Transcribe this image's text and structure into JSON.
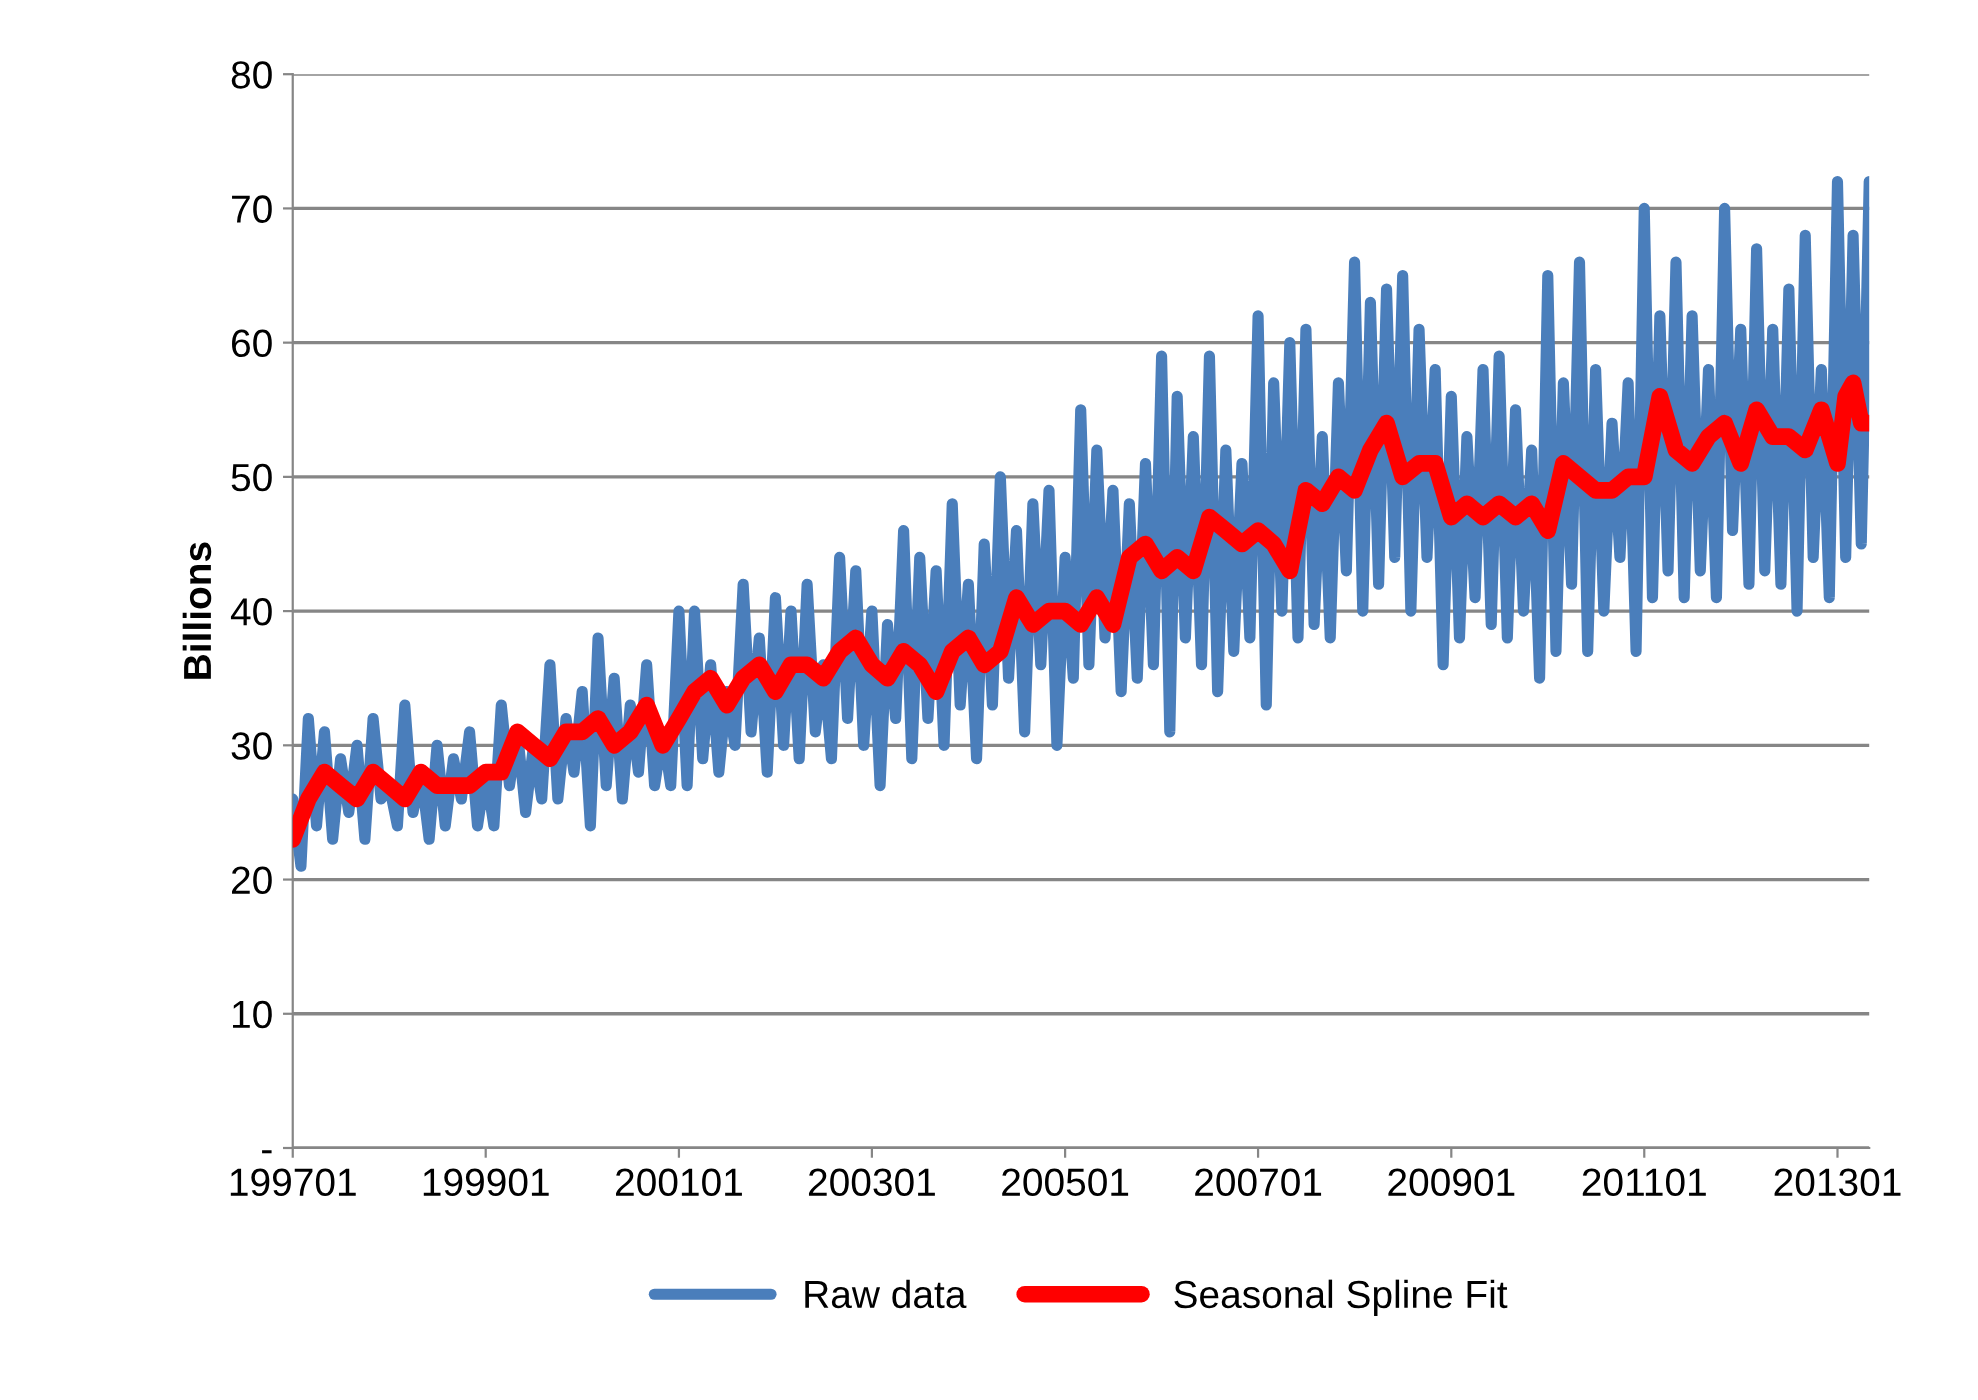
{
  "chart_data": {
    "type": "line",
    "ylabel": "Billions",
    "x": [
      "1997-01",
      "1997-02",
      "1997-03",
      "1997-04",
      "1997-05",
      "1997-06",
      "1997-07",
      "1997-08",
      "1997-09",
      "1997-10",
      "1997-11",
      "1997-12",
      "1998-01",
      "1998-02",
      "1998-03",
      "1998-04",
      "1998-05",
      "1998-06",
      "1998-07",
      "1998-08",
      "1998-09",
      "1998-10",
      "1998-11",
      "1998-12",
      "1999-01",
      "1999-02",
      "1999-03",
      "1999-04",
      "1999-05",
      "1999-06",
      "1999-07",
      "1999-08",
      "1999-09",
      "1999-10",
      "1999-11",
      "1999-12",
      "2000-01",
      "2000-02",
      "2000-03",
      "2000-04",
      "2000-05",
      "2000-06",
      "2000-07",
      "2000-08",
      "2000-09",
      "2000-10",
      "2000-11",
      "2000-12",
      "2001-01",
      "2001-02",
      "2001-03",
      "2001-04",
      "2001-05",
      "2001-06",
      "2001-07",
      "2001-08",
      "2001-09",
      "2001-10",
      "2001-11",
      "2001-12",
      "2002-01",
      "2002-02",
      "2002-03",
      "2002-04",
      "2002-05",
      "2002-06",
      "2002-07",
      "2002-08",
      "2002-09",
      "2002-10",
      "2002-11",
      "2002-12",
      "2003-01",
      "2003-02",
      "2003-03",
      "2003-04",
      "2003-05",
      "2003-06",
      "2003-07",
      "2003-08",
      "2003-09",
      "2003-10",
      "2003-11",
      "2003-12",
      "2004-01",
      "2004-02",
      "2004-03",
      "2004-04",
      "2004-05",
      "2004-06",
      "2004-07",
      "2004-08",
      "2004-09",
      "2004-10",
      "2004-11",
      "2004-12",
      "2005-01",
      "2005-02",
      "2005-03",
      "2005-04",
      "2005-05",
      "2005-06",
      "2005-07",
      "2005-08",
      "2005-09",
      "2005-10",
      "2005-11",
      "2005-12",
      "2006-01",
      "2006-02",
      "2006-03",
      "2006-04",
      "2006-05",
      "2006-06",
      "2006-07",
      "2006-08",
      "2006-09",
      "2006-10",
      "2006-11",
      "2006-12",
      "2007-01",
      "2007-02",
      "2007-03",
      "2007-04",
      "2007-05",
      "2007-06",
      "2007-07",
      "2007-08",
      "2007-09",
      "2007-10",
      "2007-11",
      "2007-12",
      "2008-01",
      "2008-02",
      "2008-03",
      "2008-04",
      "2008-05",
      "2008-06",
      "2008-07",
      "2008-08",
      "2008-09",
      "2008-10",
      "2008-11",
      "2008-12",
      "2009-01",
      "2009-02",
      "2009-03",
      "2009-04",
      "2009-05",
      "2009-06",
      "2009-07",
      "2009-08",
      "2009-09",
      "2009-10",
      "2009-11",
      "2009-12",
      "2010-01",
      "2010-02",
      "2010-03",
      "2010-04",
      "2010-05",
      "2010-06",
      "2010-07",
      "2010-08",
      "2010-09",
      "2010-10",
      "2010-11",
      "2010-12",
      "2011-01",
      "2011-02",
      "2011-03",
      "2011-04",
      "2011-05",
      "2011-06",
      "2011-07",
      "2011-08",
      "2011-09",
      "2011-10",
      "2011-11",
      "2011-12",
      "2012-01",
      "2012-02",
      "2012-03",
      "2012-04",
      "2012-05",
      "2012-06",
      "2012-07",
      "2012-08",
      "2012-09",
      "2012-10",
      "2012-11",
      "2012-12",
      "2013-01",
      "2013-02",
      "2013-03",
      "2013-04",
      "2013-05"
    ],
    "series": [
      {
        "name": "Raw data",
        "color": "#4a7ebb",
        "values": [
          26,
          21,
          32,
          24,
          31,
          23,
          29,
          25,
          30,
          23,
          32,
          26,
          27,
          24,
          33,
          25,
          28,
          23,
          30,
          24,
          29,
          26,
          31,
          24,
          28,
          24,
          33,
          27,
          31,
          25,
          30,
          26,
          36,
          26,
          32,
          28,
          34,
          24,
          38,
          27,
          35,
          26,
          33,
          28,
          36,
          27,
          31,
          27,
          40,
          27,
          40,
          29,
          36,
          28,
          34,
          30,
          42,
          31,
          38,
          28,
          41,
          30,
          40,
          29,
          42,
          31,
          36,
          29,
          44,
          32,
          43,
          30,
          40,
          27,
          39,
          32,
          46,
          29,
          44,
          32,
          43,
          30,
          48,
          33,
          42,
          29,
          45,
          33,
          50,
          35,
          46,
          31,
          48,
          36,
          49,
          30,
          44,
          35,
          55,
          36,
          52,
          38,
          49,
          34,
          48,
          35,
          51,
          36,
          59,
          31,
          56,
          38,
          53,
          36,
          59,
          34,
          52,
          37,
          51,
          38,
          62,
          33,
          57,
          40,
          60,
          38,
          61,
          39,
          53,
          38,
          57,
          43,
          66,
          40,
          63,
          42,
          64,
          44,
          65,
          40,
          61,
          44,
          58,
          36,
          56,
          38,
          53,
          41,
          58,
          39,
          59,
          38,
          55,
          40,
          52,
          35,
          65,
          37,
          57,
          42,
          66,
          37,
          58,
          40,
          54,
          44,
          57,
          37,
          70,
          41,
          62,
          43,
          66,
          41,
          62,
          43,
          58,
          41,
          70,
          46,
          61,
          42,
          67,
          43,
          61,
          42,
          64,
          40,
          68,
          44,
          58,
          41,
          72,
          44,
          68,
          45,
          72
        ]
      },
      {
        "name": "Seasonal Spline Fit",
        "color": "#ff0000",
        "x": [
          "1997-01",
          "1997-03",
          "1997-05",
          "1997-07",
          "1997-09",
          "1997-11",
          "1998-01",
          "1998-03",
          "1998-05",
          "1998-07",
          "1998-09",
          "1998-11",
          "1999-01",
          "1999-03",
          "1999-05",
          "1999-07",
          "1999-09",
          "1999-11",
          "2000-01",
          "2000-03",
          "2000-05",
          "2000-07",
          "2000-09",
          "2000-11",
          "2001-01",
          "2001-03",
          "2001-05",
          "2001-07",
          "2001-09",
          "2001-11",
          "2002-01",
          "2002-03",
          "2002-05",
          "2002-07",
          "2002-09",
          "2002-11",
          "2003-01",
          "2003-03",
          "2003-05",
          "2003-07",
          "2003-09",
          "2003-11",
          "2004-01",
          "2004-03",
          "2004-05",
          "2004-07",
          "2004-09",
          "2004-11",
          "2005-01",
          "2005-03",
          "2005-05",
          "2005-07",
          "2005-09",
          "2005-11",
          "2006-01",
          "2006-03",
          "2006-05",
          "2006-07",
          "2006-09",
          "2006-11",
          "2007-01",
          "2007-03",
          "2007-05",
          "2007-07",
          "2007-09",
          "2007-11",
          "2008-01",
          "2008-03",
          "2008-05",
          "2008-07",
          "2008-09",
          "2008-11",
          "2009-01",
          "2009-03",
          "2009-05",
          "2009-07",
          "2009-09",
          "2009-11",
          "2010-01",
          "2010-03",
          "2010-05",
          "2010-07",
          "2010-09",
          "2010-11",
          "2011-01",
          "2011-03",
          "2011-05",
          "2011-07",
          "2011-09",
          "2011-11",
          "2012-01",
          "2012-03",
          "2012-05",
          "2012-07",
          "2012-09",
          "2012-11",
          "2013-01",
          "2013-02",
          "2013-03",
          "2013-04",
          "2013-05"
        ],
        "values": [
          23,
          26,
          28,
          27,
          26,
          28,
          27,
          26,
          28,
          27,
          27,
          27,
          28,
          28,
          31,
          30,
          29,
          31,
          31,
          32,
          30,
          31,
          33,
          30,
          32,
          34,
          35,
          33,
          35,
          36,
          34,
          36,
          36,
          35,
          37,
          38,
          36,
          35,
          37,
          36,
          34,
          37,
          38,
          36,
          37,
          41,
          39,
          40,
          40,
          39,
          41,
          39,
          44,
          45,
          43,
          44,
          43,
          47,
          46,
          45,
          46,
          45,
          43,
          49,
          48,
          50,
          49,
          52,
          54,
          50,
          51,
          51,
          47,
          48,
          47,
          48,
          47,
          48,
          46,
          51,
          50,
          49,
          49,
          50,
          50,
          56,
          52,
          51,
          53,
          54,
          51,
          55,
          53,
          53,
          52,
          55,
          51,
          56,
          57,
          54,
          54
        ]
      }
    ],
    "xlim": [
      "1997-01",
      "2013-05"
    ],
    "xticks": [
      {
        "value": "1997-01",
        "label": "199701"
      },
      {
        "value": "1999-01",
        "label": "199901"
      },
      {
        "value": "2001-01",
        "label": "200101"
      },
      {
        "value": "2003-01",
        "label": "200301"
      },
      {
        "value": "2005-01",
        "label": "200501"
      },
      {
        "value": "2007-01",
        "label": "200701"
      },
      {
        "value": "2009-01",
        "label": "200901"
      },
      {
        "value": "2011-01",
        "label": "201101"
      },
      {
        "value": "2013-01",
        "label": "201301"
      }
    ],
    "ylim": [
      0,
      80
    ],
    "yticks": [
      {
        "value": 0,
        "label": "-"
      },
      10,
      20,
      30,
      40,
      50,
      60,
      70,
      80
    ],
    "grid": "y",
    "legend": "bottom",
    "marker": "none",
    "line_style": "solid"
  }
}
